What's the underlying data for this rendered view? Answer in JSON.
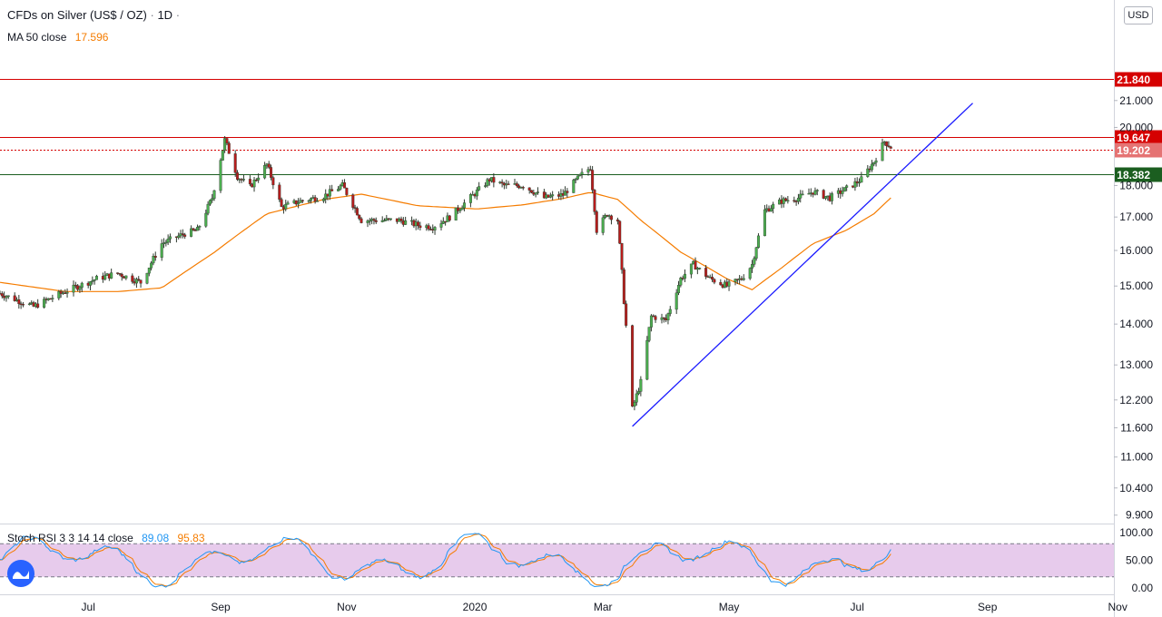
{
  "header": {
    "symbol": "CFDs on Silver (US$ / OZ)",
    "separator": "·",
    "interval": "1D",
    "interval_suffix": "·",
    "ma_label": "MA 50 close",
    "ma_value": "17.596"
  },
  "stoch": {
    "label": "Stoch RSI 3 3 14 14 close",
    "k_value": "89.08",
    "d_value": "95.83",
    "axis_ticks": [
      "100.00",
      "50.00",
      "0.00"
    ],
    "upper_band": 80,
    "lower_band": 20
  },
  "currency_button": "USD",
  "colors": {
    "up_candle": "#26a69a",
    "down_candle": "#ef5350",
    "candle_body_up": "#4caf50",
    "candle_body_down": "#b71c1c",
    "wick": "#2f3a2f",
    "ma_line": "#f57c00",
    "trend_line": "#1a1aff",
    "resistance": "#d50000",
    "support": "#1b5e20",
    "band_fill": "#e1bee7",
    "stoch_k": "#2196f3",
    "stoch_d": "#f57c00"
  },
  "chart_data": {
    "type": "candlestick",
    "title": "CFDs on Silver (US$ / OZ) · 1D",
    "price_axis": {
      "scale": "log",
      "ticks": [
        "9.900",
        "10.400",
        "11.000",
        "11.600",
        "12.200",
        "13.000",
        "14.000",
        "15.000",
        "16.000",
        "17.000",
        "18.000",
        "20.000",
        "21.000"
      ],
      "range": [
        9.75,
        25.0
      ]
    },
    "time_axis": {
      "range": [
        "2019-05-20",
        "2020-11-30"
      ],
      "labels": [
        {
          "text": "Jul",
          "date": "2019-07-01"
        },
        {
          "text": "Sep",
          "date": "2019-09-02"
        },
        {
          "text": "Nov",
          "date": "2019-11-01"
        },
        {
          "text": "2020",
          "date": "2020-01-01"
        },
        {
          "text": "Mar",
          "date": "2020-03-02"
        },
        {
          "text": "May",
          "date": "2020-05-01"
        },
        {
          "text": "Jul",
          "date": "2020-07-01"
        },
        {
          "text": "Sep",
          "date": "2020-09-01"
        },
        {
          "text": "Nov",
          "date": "2020-11-02"
        }
      ]
    },
    "horizontal_levels": [
      {
        "value": 21.84,
        "label": "21.840",
        "style": "solid",
        "color": "#d50000"
      },
      {
        "value": 19.647,
        "label": "19.647",
        "style": "solid",
        "color": "#d50000"
      },
      {
        "value": 19.202,
        "label": "19.202",
        "style": "dotted",
        "color": "#d50000",
        "label_color": "#e57373"
      },
      {
        "value": 18.382,
        "label": "18.382",
        "style": "solid",
        "color": "#1b5e20"
      }
    ],
    "trend_line": {
      "start": {
        "date": "2020-03-16",
        "price": 11.63
      },
      "end": {
        "date": "2020-08-25",
        "price": 20.9
      }
    },
    "price_anchors": [
      [
        "2019-05-20",
        14.8
      ],
      [
        "2019-06-05",
        14.45
      ],
      [
        "2019-06-20",
        14.85
      ],
      [
        "2019-07-05",
        15.2
      ],
      [
        "2019-07-15",
        15.35
      ],
      [
        "2019-07-26",
        15.1
      ],
      [
        "2019-08-05",
        16.2
      ],
      [
        "2019-08-16",
        16.5
      ],
      [
        "2019-08-22",
        16.6
      ],
      [
        "2019-08-29",
        17.6
      ],
      [
        "2019-09-04",
        19.55
      ],
      [
        "2019-09-10",
        18.3
      ],
      [
        "2019-09-16",
        17.95
      ],
      [
        "2019-09-24",
        18.7
      ],
      [
        "2019-10-01",
        17.3
      ],
      [
        "2019-10-10",
        17.5
      ],
      [
        "2019-10-21",
        17.65
      ],
      [
        "2019-10-30",
        18.0
      ],
      [
        "2019-11-08",
        16.9
      ],
      [
        "2019-11-18",
        16.9
      ],
      [
        "2019-11-26",
        16.9
      ],
      [
        "2019-12-05",
        16.75
      ],
      [
        "2019-12-12",
        16.7
      ],
      [
        "2019-12-20",
        17.0
      ],
      [
        "2020-01-02",
        17.8
      ],
      [
        "2020-01-08",
        18.2
      ],
      [
        "2020-01-15",
        18.0
      ],
      [
        "2020-01-24",
        18.0
      ],
      [
        "2020-02-03",
        17.6
      ],
      [
        "2020-02-12",
        17.7
      ],
      [
        "2020-02-20",
        18.3
      ],
      [
        "2020-02-25",
        18.6
      ],
      [
        "2020-02-28",
        16.6
      ],
      [
        "2020-03-04",
        17.1
      ],
      [
        "2020-03-09",
        16.9
      ],
      [
        "2020-03-12",
        14.6
      ],
      [
        "2020-03-16",
        12.0
      ],
      [
        "2020-03-20",
        12.6
      ],
      [
        "2020-03-25",
        14.2
      ],
      [
        "2020-04-01",
        14.1
      ],
      [
        "2020-04-08",
        15.2
      ],
      [
        "2020-04-14",
        15.6
      ],
      [
        "2020-04-22",
        15.2
      ],
      [
        "2020-04-30",
        15.0
      ],
      [
        "2020-05-07",
        15.2
      ],
      [
        "2020-05-12",
        15.6
      ],
      [
        "2020-05-18",
        17.2
      ],
      [
        "2020-05-26",
        17.5
      ],
      [
        "2020-06-03",
        17.6
      ],
      [
        "2020-06-10",
        17.8
      ],
      [
        "2020-06-18",
        17.6
      ],
      [
        "2020-06-26",
        17.9
      ],
      [
        "2020-07-03",
        18.2
      ],
      [
        "2020-07-09",
        18.8
      ],
      [
        "2020-07-14",
        19.5
      ],
      [
        "2020-07-17",
        19.3
      ]
    ],
    "ma50_anchors": [
      [
        "2019-05-20",
        15.1
      ],
      [
        "2019-06-20",
        14.85
      ],
      [
        "2019-07-15",
        14.85
      ],
      [
        "2019-08-05",
        14.95
      ],
      [
        "2019-08-29",
        15.9
      ],
      [
        "2019-09-24",
        17.1
      ],
      [
        "2019-10-21",
        17.55
      ],
      [
        "2019-11-08",
        17.72
      ],
      [
        "2019-12-05",
        17.35
      ],
      [
        "2020-01-02",
        17.25
      ],
      [
        "2020-01-24",
        17.38
      ],
      [
        "2020-02-12",
        17.58
      ],
      [
        "2020-02-25",
        17.78
      ],
      [
        "2020-03-09",
        17.55
      ],
      [
        "2020-03-20",
        16.9
      ],
      [
        "2020-04-08",
        15.95
      ],
      [
        "2020-04-30",
        15.2
      ],
      [
        "2020-05-12",
        14.9
      ],
      [
        "2020-05-26",
        15.5
      ],
      [
        "2020-06-10",
        16.2
      ],
      [
        "2020-06-26",
        16.6
      ],
      [
        "2020-07-09",
        17.1
      ],
      [
        "2020-07-17",
        17.6
      ]
    ],
    "stoch_rsi": {
      "k_last": 89.08,
      "d_last": 95.83,
      "range": [
        0,
        100
      ]
    }
  }
}
